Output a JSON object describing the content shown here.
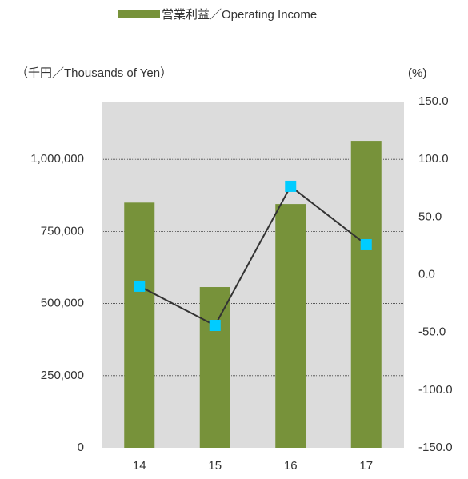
{
  "chart_data": {
    "type": "bar",
    "y_label": "（千円／Thousands of Yen）",
    "y2_label": "(%)",
    "categories": [
      "14",
      "15",
      "16",
      "17"
    ],
    "series": [
      {
        "name": "営業利益／Operating Income",
        "type": "bar",
        "color": "#77923a",
        "values": [
          850000,
          557000,
          845000,
          1064000
        ]
      },
      {
        "type": "line",
        "axis": "y2",
        "color": "#00ccff",
        "line_color": "#333333",
        "values": [
          -10,
          -44,
          76.6,
          26
        ]
      }
    ],
    "ylim": [
      0,
      1200000
    ],
    "yticks": [
      0,
      {
        "value": 250000,
        "label": "250,000"
      },
      {
        "value": 500000,
        "label": "500,000"
      },
      {
        "value": 750000,
        "label": "750,000"
      },
      {
        "value": 1000000,
        "label": "1,000,000"
      }
    ],
    "y2lim": [
      -150,
      150
    ],
    "y2ticks": [
      {
        "value": -150,
        "label": "-150.0"
      },
      {
        "value": -100,
        "label": "-100.0"
      },
      {
        "value": -50,
        "label": "-50.0"
      },
      {
        "value": 0,
        "label": "0.0"
      },
      {
        "value": 50,
        "label": "50.0"
      },
      {
        "value": 100,
        "label": "100.0"
      },
      {
        "value": 150,
        "label": "150.0"
      }
    ],
    "grid": true,
    "plot_background": "#dcdcdc"
  }
}
